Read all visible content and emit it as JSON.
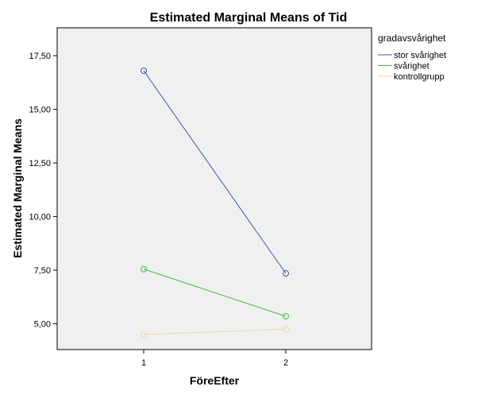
{
  "chart_data": {
    "type": "line",
    "title": "Estimated Marginal Means of Tid",
    "xlabel": "FöreEfter",
    "ylabel": "Estimated Marginal Means",
    "x": [
      "1",
      "2"
    ],
    "ylim": [
      3.8,
      18.8
    ],
    "yticks": [
      "5,00",
      "7,50",
      "10,00",
      "12,50",
      "15,00",
      "17,50"
    ],
    "yticks_values": [
      5,
      7.5,
      10,
      12.5,
      15,
      17.5
    ],
    "grid": false,
    "legend": {
      "title": "gradavsvårighet",
      "placement": "right"
    },
    "series": [
      {
        "name": "stor svårighet",
        "values": [
          16.8,
          7.35
        ],
        "color": "#3a56b8"
      },
      {
        "name": "svårighet",
        "values": [
          7.55,
          5.35
        ],
        "color": "#3fbf3f"
      },
      {
        "name": "kontrollgrupp",
        "values": [
          4.5,
          4.75
        ],
        "color": "#e6dca3"
      }
    ],
    "plot_background": "#f0f0f0"
  }
}
